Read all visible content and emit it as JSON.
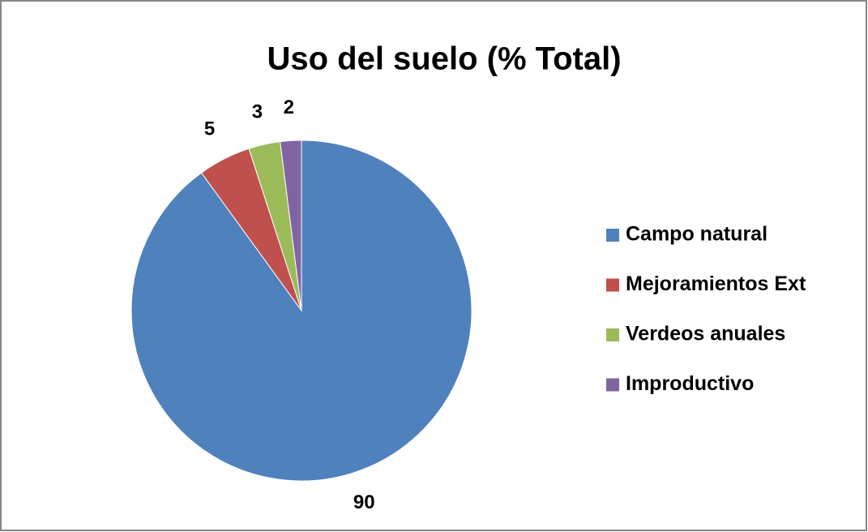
{
  "chart_data": {
    "type": "pie",
    "title": "Uso del suelo (% Total)",
    "categories": [
      "Campo natural",
      "Mejoramientos Ext",
      "Verdeos anuales",
      "Improductivo"
    ],
    "values": [
      90,
      5,
      3,
      2
    ],
    "colors": [
      "#4f81bd",
      "#c0504d",
      "#9bbb59",
      "#8064a2"
    ],
    "legend": "right"
  }
}
